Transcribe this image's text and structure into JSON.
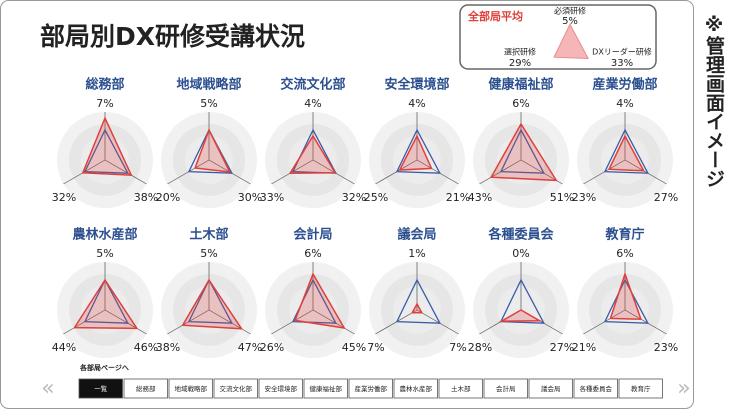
{
  "header": {
    "title": "部局別DX研修受講状況",
    "note": "※管理画面イメージ"
  },
  "summary": {
    "title": "全部局平均",
    "categories": [
      "必須研修",
      "選択研修",
      "DXリーダー研修"
    ],
    "values": [
      5,
      29,
      33
    ],
    "value_labels": [
      "5%",
      "29%",
      "33%"
    ],
    "color": "#f4b6b6"
  },
  "radar_scale": [
    8,
    60,
    60
  ],
  "chart_data": [
    {
      "type": "radar",
      "title": "総務部",
      "values": [
        7,
        32,
        38
      ],
      "value_labels": [
        "7%",
        "32%",
        "38%"
      ],
      "color": "#e0403c"
    },
    {
      "type": "radar",
      "title": "地域戦略部",
      "values": [
        5,
        20,
        30
      ],
      "value_labels": [
        "5%",
        "20%",
        "30%"
      ],
      "color": "#e0403c"
    },
    {
      "type": "radar",
      "title": "交流文化部",
      "values": [
        4,
        33,
        32
      ],
      "value_labels": [
        "4%",
        "33%",
        "32%"
      ],
      "color": "#e0403c"
    },
    {
      "type": "radar",
      "title": "安全環境部",
      "values": [
        4,
        25,
        21
      ],
      "value_labels": [
        "4%",
        "25%",
        "21%"
      ],
      "color": "#e0403c"
    },
    {
      "type": "radar",
      "title": "健康福祉部",
      "values": [
        6,
        43,
        51
      ],
      "value_labels": [
        "6%",
        "43%",
        "51%"
      ],
      "color": "#e0403c"
    },
    {
      "type": "radar",
      "title": "産業労働部",
      "values": [
        4,
        23,
        27
      ],
      "value_labels": [
        "4%",
        "23%",
        "27%"
      ],
      "color": "#e0403c"
    },
    {
      "type": "radar",
      "title": "農林水産部",
      "values": [
        5,
        44,
        46
      ],
      "value_labels": [
        "5%",
        "44%",
        "46%"
      ],
      "color": "#e0403c"
    },
    {
      "type": "radar",
      "title": "土木部",
      "values": [
        5,
        38,
        47
      ],
      "value_labels": [
        "5%",
        "38%",
        "47%"
      ],
      "color": "#e0403c"
    },
    {
      "type": "radar",
      "title": "会計局",
      "values": [
        6,
        26,
        45
      ],
      "value_labels": [
        "6%",
        "26%",
        "45%"
      ],
      "color": "#e0403c"
    },
    {
      "type": "radar",
      "title": "議会局",
      "values": [
        1,
        7,
        7
      ],
      "value_labels": [
        "1%",
        "7%",
        "7%"
      ],
      "color": "#e0403c"
    },
    {
      "type": "radar",
      "title": "各種委員会",
      "values": [
        0,
        28,
        27
      ],
      "value_labels": [
        "0%",
        "28%",
        "27%"
      ],
      "color": "#e0403c"
    },
    {
      "type": "radar",
      "title": "教育庁",
      "values": [
        6,
        21,
        23
      ],
      "value_labels": [
        "6%",
        "21%",
        "23%"
      ],
      "color": "#e0403c"
    }
  ],
  "nav": {
    "label": "各部局ページへ",
    "prev": "«",
    "next": "»",
    "buttons": [
      "一覧",
      "総務部",
      "地域戦略部",
      "交流文化部",
      "安全環境部",
      "健康福祉部",
      "産業労働部",
      "農林水産部",
      "土木部",
      "会計局",
      "議会局",
      "各種委員会",
      "教育庁"
    ]
  }
}
